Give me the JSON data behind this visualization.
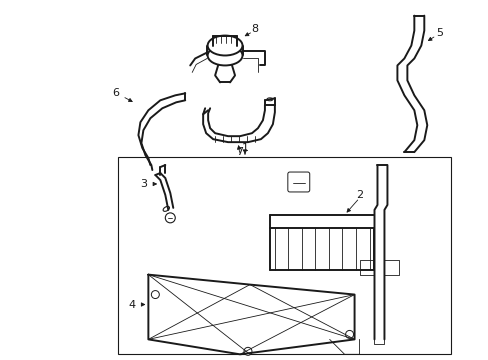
{
  "bg_color": "#ffffff",
  "line_color": "#1a1a1a",
  "fig_width": 4.89,
  "fig_height": 3.6,
  "dpi": 100,
  "label_fs": 8,
  "lw_main": 1.0,
  "lw_thin": 0.6,
  "lw_thick": 1.4
}
